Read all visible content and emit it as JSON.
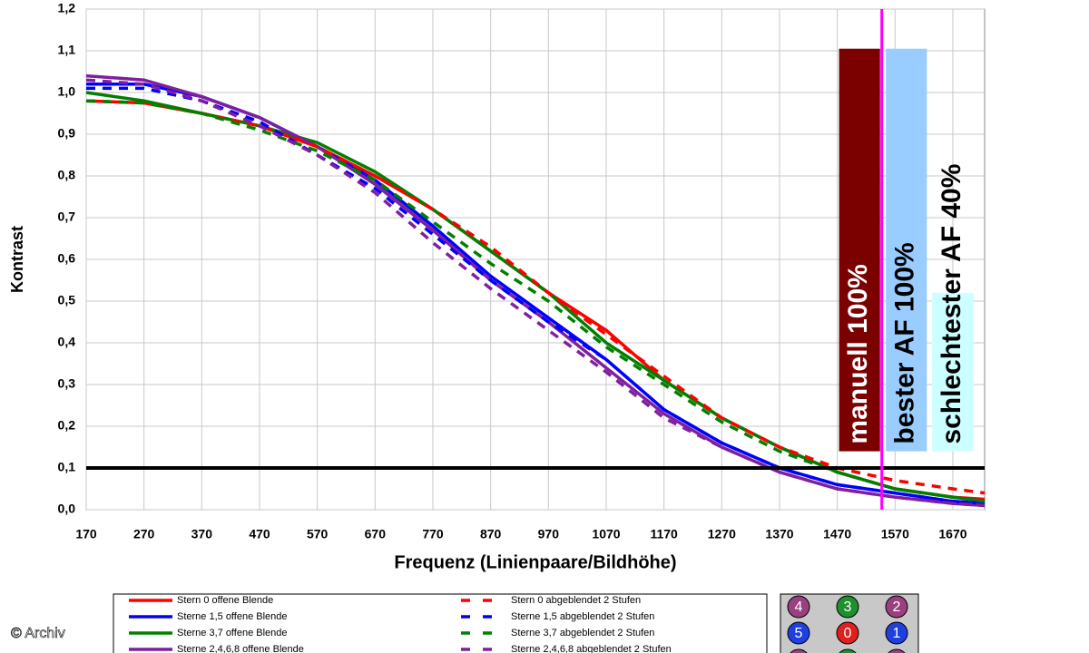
{
  "chart_data": {
    "type": "line",
    "xlabel": "Frequenz (Linienpaare/Bildhöhe)",
    "ylabel": "Kontrast",
    "x": [
      170,
      270,
      370,
      470,
      570,
      670,
      770,
      870,
      970,
      1070,
      1170,
      1270,
      1370,
      1470,
      1570,
      1670,
      1725
    ],
    "series": [
      {
        "name": "Stern 0 offene Blende",
        "color": "#ff0000",
        "dash": false,
        "values": [
          0.98,
          0.975,
          0.95,
          0.92,
          0.87,
          0.8,
          0.72,
          0.62,
          0.52,
          0.43,
          0.31,
          0.22,
          0.15,
          0.09,
          0.05,
          0.03,
          0.025
        ]
      },
      {
        "name": "Sterne 1,5 offene Blende",
        "color": "#0000ff",
        "dash": false,
        "values": [
          1.02,
          1.02,
          0.99,
          0.94,
          0.87,
          0.79,
          0.68,
          0.56,
          0.46,
          0.36,
          0.24,
          0.16,
          0.1,
          0.06,
          0.04,
          0.02,
          0.015
        ]
      },
      {
        "name": "Sterne 3,7 offene Blende",
        "color": "#008000",
        "dash": false,
        "values": [
          1.0,
          0.98,
          0.95,
          0.92,
          0.88,
          0.81,
          0.72,
          0.62,
          0.52,
          0.4,
          0.31,
          0.22,
          0.15,
          0.09,
          0.05,
          0.03,
          0.02
        ]
      },
      {
        "name": "Sterne 2,4,6,8 offene Blende",
        "color": "#7f1f9f",
        "dash": false,
        "values": [
          1.04,
          1.03,
          0.99,
          0.94,
          0.87,
          0.78,
          0.67,
          0.55,
          0.45,
          0.34,
          0.23,
          0.15,
          0.09,
          0.05,
          0.03,
          0.015,
          0.01
        ]
      },
      {
        "name": "Stern 0 abgeblendet 2 Stufen",
        "color": "#ff0000",
        "dash": true,
        "values": [
          0.98,
          0.975,
          0.95,
          0.92,
          0.87,
          0.8,
          0.72,
          0.63,
          0.52,
          0.42,
          0.32,
          0.22,
          0.15,
          0.1,
          0.07,
          0.05,
          0.04
        ]
      },
      {
        "name": "Sterne 1,5 abgeblendet 2 Stufen",
        "color": "#0000ff",
        "dash": true,
        "values": [
          1.01,
          1.01,
          0.98,
          0.93,
          0.85,
          0.77,
          0.66,
          0.55,
          0.45,
          0.36,
          0.24,
          0.16,
          0.1,
          0.06,
          0.04,
          0.02,
          0.015
        ]
      },
      {
        "name": "Sterne 3,7 abgeblendet 2 Stufen",
        "color": "#008000",
        "dash": true,
        "values": [
          0.98,
          0.975,
          0.95,
          0.91,
          0.86,
          0.79,
          0.69,
          0.59,
          0.5,
          0.39,
          0.3,
          0.21,
          0.14,
          0.09,
          0.05,
          0.03,
          0.02
        ]
      },
      {
        "name": "Sterne 2,4,6,8 abgeblendet 2 Stufen",
        "color": "#7f1f9f",
        "dash": true,
        "values": [
          1.03,
          1.02,
          0.98,
          0.92,
          0.85,
          0.76,
          0.64,
          0.53,
          0.43,
          0.33,
          0.22,
          0.15,
          0.09,
          0.05,
          0.03,
          0.015,
          0.01
        ]
      }
    ],
    "xlim": [
      170,
      1725
    ],
    "ylim": [
      0,
      1.2
    ],
    "xticks": [
      170,
      270,
      370,
      470,
      570,
      670,
      770,
      870,
      970,
      1070,
      1170,
      1270,
      1370,
      1470,
      1570,
      1670
    ],
    "yticks": [
      {
        "value": 0,
        "label": "0,0"
      },
      {
        "value": 0.1,
        "label": "0,1"
      },
      {
        "value": 0.2,
        "label": "0,2"
      },
      {
        "value": 0.3,
        "label": "0,3"
      },
      {
        "value": 0.4,
        "label": "0,4"
      },
      {
        "value": 0.5,
        "label": "0,5"
      },
      {
        "value": 0.6,
        "label": "0,6"
      },
      {
        "value": 0.7,
        "label": "0,7"
      },
      {
        "value": 0.8,
        "label": "0,8"
      },
      {
        "value": 0.9,
        "label": "0,9"
      },
      {
        "value": 1.0,
        "label": "1,0"
      },
      {
        "value": 1.1,
        "label": "1,1"
      },
      {
        "value": 1.2,
        "label": "1,2"
      }
    ],
    "grid": true,
    "hlines": [
      {
        "y": 0.1,
        "color": "#000000"
      }
    ],
    "vlines": [
      {
        "x": 1547,
        "color": "#ff00ff"
      }
    ],
    "bars": [
      {
        "label": "manuell 100%",
        "x": [
          1473,
          1544
        ],
        "y": [
          0.14,
          1.105
        ],
        "color": "#7b0000",
        "text_color": "#ffffff"
      },
      {
        "label": "bester AF 100%",
        "x": [
          1554,
          1625
        ],
        "y": [
          0.14,
          1.105
        ],
        "color": "#99ccff",
        "text_color": "#000000"
      },
      {
        "label": "schlechtester AF 40%",
        "x": [
          1634,
          1706
        ],
        "y": [
          0.14,
          0.52
        ],
        "color": "#ccffff",
        "text_color": "#000000"
      }
    ]
  },
  "star_map": {
    "rows": [
      [
        {
          "label": "4",
          "color": "#9a3f7f"
        },
        {
          "label": "3",
          "color": "#1f8f2f"
        },
        {
          "label": "2",
          "color": "#9a3f7f"
        }
      ],
      [
        {
          "label": "5",
          "color": "#1f3fdf"
        },
        {
          "label": "0",
          "color": "#e01f1f"
        },
        {
          "label": "1",
          "color": "#1f3fdf"
        }
      ]
    ]
  },
  "credit": "© Archiv"
}
